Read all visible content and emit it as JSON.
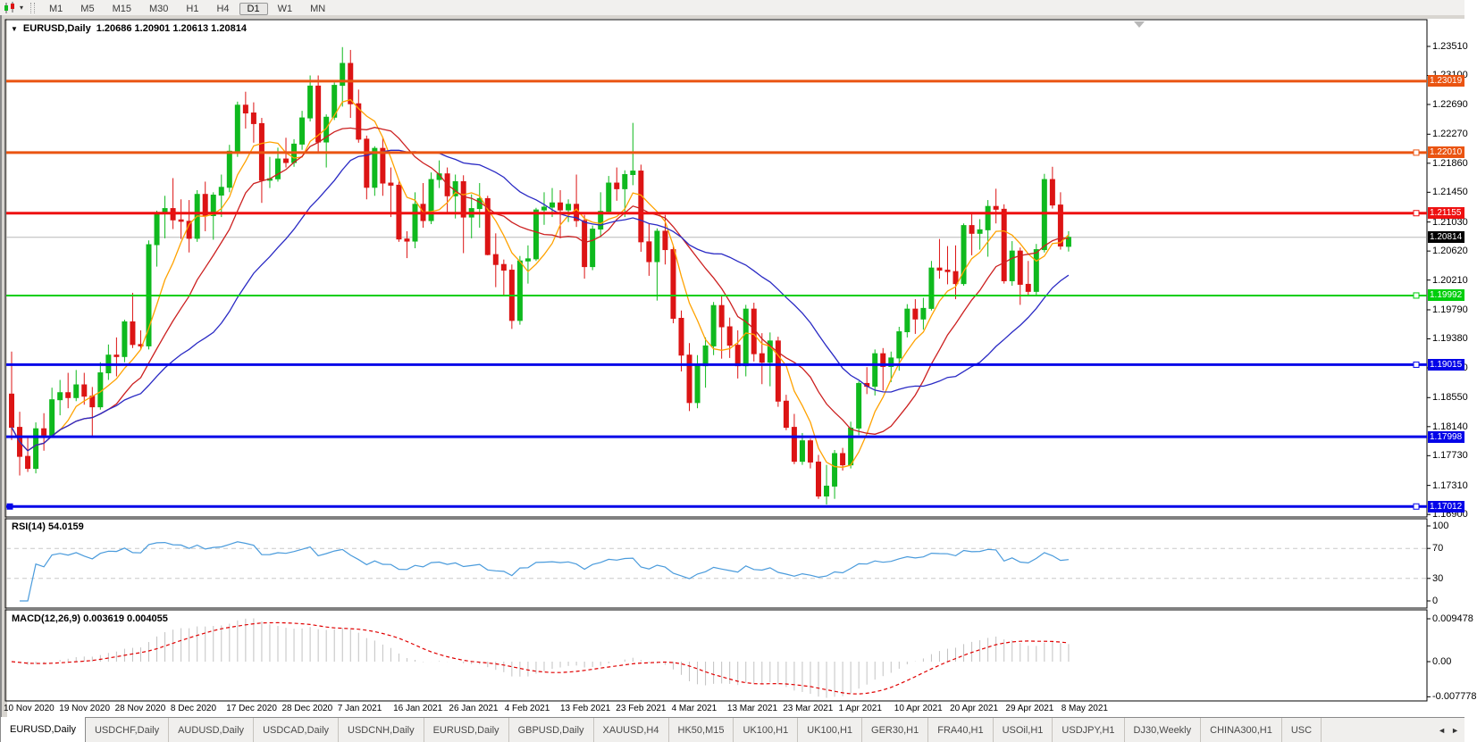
{
  "toolbar": {
    "timeframes": [
      "M1",
      "M5",
      "M15",
      "M30",
      "H1",
      "H4",
      "D1",
      "W1",
      "MN"
    ],
    "active_timeframe": "D1"
  },
  "chart": {
    "symbol_label": "EURUSD,Daily",
    "ohlc_label": "1.20686 1.20901 1.20613 1.20814",
    "dropdown_icon": "▼"
  },
  "chart_data": {
    "type": "candlestick+indicators",
    "symbol": "EURUSD",
    "timeframe": "Daily",
    "ohlc_display": {
      "open": "1.20686",
      "high": "1.20901",
      "low": "1.20613",
      "close": "1.20814"
    },
    "main": {
      "price_range": [
        1.16864,
        1.23888
      ],
      "ticks": [
        "1.23510",
        "1.23100",
        "1.22690",
        "1.22270",
        "1.21860",
        "1.21450",
        "1.21030",
        "1.20620",
        "1.20210",
        "1.19790",
        "1.19380",
        "1.18970",
        "1.18550",
        "1.18140",
        "1.17730",
        "1.17310",
        "1.16900"
      ],
      "levels": [
        {
          "price": 1.23019,
          "label": "1.23019",
          "color": "#EA5411",
          "width": 3,
          "handle": false,
          "left_handle": false
        },
        {
          "price": 1.2201,
          "label": "1.22010",
          "color": "#EA5411",
          "width": 3,
          "handle": true,
          "left_handle": false
        },
        {
          "price": 1.21155,
          "label": "1.21155",
          "color": "#EE1111",
          "width": 3,
          "handle": true,
          "left_handle": false
        },
        {
          "price": 1.19992,
          "label": "1.19992",
          "color": "#00CE0C",
          "width": 2,
          "handle": true,
          "left_handle": false
        },
        {
          "price": 1.19015,
          "label": "1.19015",
          "color": "#0404E8",
          "width": 3,
          "handle": true,
          "left_handle": false
        },
        {
          "price": 1.17998,
          "label": "1.17998",
          "color": "#0404E8",
          "width": 3,
          "handle": false,
          "left_handle": false
        },
        {
          "price": 1.17012,
          "label": "1.17012",
          "color": "#0404E8",
          "width": 3,
          "handle": true,
          "left_handle": true
        }
      ],
      "current_price": {
        "value": 1.20814,
        "label": "1.20814",
        "line_color": "#B8B8B8",
        "box_color": "#000000"
      },
      "candle_up_color": "#0FB91E",
      "candle_down_color": "#DC1414",
      "ma": [
        {
          "name": "ma-fast",
          "period": 6,
          "color": "#FFA200"
        },
        {
          "name": "ma-medium",
          "period": 13,
          "color": "#CC2020"
        },
        {
          "name": "ma-slow",
          "period": 26,
          "color": "#2A2AC4"
        }
      ],
      "candles": [
        [
          1.186,
          1.192,
          1.1795,
          1.1813
        ],
        [
          1.1813,
          1.1835,
          1.1745,
          1.1772
        ],
        [
          1.1772,
          1.18,
          1.175,
          1.1755
        ],
        [
          1.1755,
          1.182,
          1.1748,
          1.1811
        ],
        [
          1.1811,
          1.1833,
          1.178,
          1.1802
        ],
        [
          1.1802,
          1.1869,
          1.18,
          1.1852
        ],
        [
          1.1852,
          1.188,
          1.183,
          1.1862
        ],
        [
          1.1862,
          1.189,
          1.184,
          1.1855
        ],
        [
          1.1855,
          1.1894,
          1.185,
          1.1873
        ],
        [
          1.1873,
          1.189,
          1.1845,
          1.1857
        ],
        [
          1.1857,
          1.187,
          1.18,
          1.1842
        ],
        [
          1.1842,
          1.1905,
          1.1838,
          1.189
        ],
        [
          1.189,
          1.193,
          1.188,
          1.1915
        ],
        [
          1.1915,
          1.194,
          1.1885,
          1.1913
        ],
        [
          1.1913,
          1.1965,
          1.1905,
          1.1962
        ],
        [
          1.1962,
          1.2003,
          1.1925,
          1.193
        ],
        [
          1.193,
          1.195,
          1.1923,
          1.1928
        ],
        [
          1.1928,
          1.2077,
          1.1923,
          1.2071
        ],
        [
          1.2071,
          1.2119,
          1.204,
          1.2115
        ],
        [
          1.2115,
          1.214,
          1.208,
          1.2122
        ],
        [
          1.2122,
          1.2165,
          1.2093,
          1.2106
        ],
        [
          1.2106,
          1.2135,
          1.2079,
          1.2104
        ],
        [
          1.2104,
          1.2134,
          1.206,
          1.208
        ],
        [
          1.208,
          1.2148,
          1.2075,
          1.2142
        ],
        [
          1.2142,
          1.216,
          1.209,
          1.2112
        ],
        [
          1.2112,
          1.2145,
          1.2078,
          1.2141
        ],
        [
          1.2141,
          1.217,
          1.211,
          1.2152
        ],
        [
          1.2152,
          1.2212,
          1.2145,
          1.2203
        ],
        [
          1.2203,
          1.2273,
          1.2195,
          1.2268
        ],
        [
          1.2268,
          1.2287,
          1.2235,
          1.2257
        ],
        [
          1.2257,
          1.2272,
          1.2215,
          1.2242
        ],
        [
          1.2242,
          1.225,
          1.213,
          1.2162
        ],
        [
          1.2162,
          1.2195,
          1.2151,
          1.2164
        ],
        [
          1.2164,
          1.2208,
          1.216,
          1.2192
        ],
        [
          1.2192,
          1.2222,
          1.218,
          1.2187
        ],
        [
          1.2187,
          1.222,
          1.2181,
          1.2213
        ],
        [
          1.2213,
          1.226,
          1.2205,
          1.225
        ],
        [
          1.225,
          1.231,
          1.2245,
          1.2295
        ],
        [
          1.2295,
          1.231,
          1.22,
          1.2216
        ],
        [
          1.2216,
          1.2255,
          1.218,
          1.2251
        ],
        [
          1.2251,
          1.23,
          1.2247,
          1.2296
        ],
        [
          1.2296,
          1.235,
          1.2266,
          1.2327
        ],
        [
          1.2327,
          1.2346,
          1.225,
          1.227
        ],
        [
          1.227,
          1.229,
          1.2215,
          1.222
        ],
        [
          1.222,
          1.2225,
          1.2135,
          1.2152
        ],
        [
          1.2152,
          1.221,
          1.214,
          1.2207
        ],
        [
          1.2207,
          1.2223,
          1.214,
          1.2158
        ],
        [
          1.2158,
          1.218,
          1.211,
          1.2155
        ],
        [
          1.2155,
          1.216,
          1.2075,
          1.2079
        ],
        [
          1.2079,
          1.209,
          1.2052,
          1.2076
        ],
        [
          1.2076,
          1.2145,
          1.2066,
          1.2128
        ],
        [
          1.2128,
          1.2158,
          1.2095,
          1.2105
        ],
        [
          1.2105,
          1.2173,
          1.21,
          1.2163
        ],
        [
          1.2163,
          1.219,
          1.2151,
          1.2171
        ],
        [
          1.2171,
          1.218,
          1.2115,
          1.214
        ],
        [
          1.214,
          1.217,
          1.2108,
          1.216
        ],
        [
          1.216,
          1.2169,
          1.2059,
          1.211
        ],
        [
          1.211,
          1.2142,
          1.208,
          1.2122
        ],
        [
          1.2122,
          1.2158,
          1.2095,
          1.2136
        ],
        [
          1.2136,
          1.214,
          1.2056,
          1.2057
        ],
        [
          1.2057,
          1.2087,
          1.2011,
          1.2043
        ],
        [
          1.2043,
          1.205,
          1.1999,
          1.2035
        ],
        [
          1.2035,
          1.2043,
          1.1952,
          1.1964
        ],
        [
          1.1964,
          1.2055,
          1.1958,
          1.2048
        ],
        [
          1.2048,
          1.207,
          1.2016,
          1.2051
        ],
        [
          1.2051,
          1.2123,
          1.2048,
          1.212
        ],
        [
          1.212,
          1.2145,
          1.2099,
          1.2124
        ],
        [
          1.2124,
          1.2151,
          1.211,
          1.213
        ],
        [
          1.213,
          1.2148,
          1.208,
          1.212
        ],
        [
          1.212,
          1.2135,
          1.2103,
          1.2128
        ],
        [
          1.2128,
          1.217,
          1.2096,
          1.2105
        ],
        [
          1.2105,
          1.2113,
          1.2023,
          1.204
        ],
        [
          1.204,
          1.2098,
          1.2035,
          1.2093
        ],
        [
          1.2093,
          1.2145,
          1.2082,
          1.2118
        ],
        [
          1.2118,
          1.2168,
          1.2115,
          1.2158
        ],
        [
          1.2158,
          1.218,
          1.2133,
          1.215
        ],
        [
          1.215,
          1.2176,
          1.211,
          1.217
        ],
        [
          1.217,
          1.2243,
          1.2155,
          1.2175
        ],
        [
          1.2175,
          1.2184,
          1.2061,
          1.2075
        ],
        [
          1.2075,
          1.2101,
          1.2027,
          1.2047
        ],
        [
          1.2047,
          1.2094,
          1.1992,
          1.209
        ],
        [
          1.209,
          1.2113,
          1.2043,
          1.2064
        ],
        [
          1.2064,
          1.2069,
          1.196,
          1.1967
        ],
        [
          1.1967,
          1.1978,
          1.1892,
          1.1915
        ],
        [
          1.1915,
          1.1932,
          1.1836,
          1.1848
        ],
        [
          1.1848,
          1.1915,
          1.184,
          1.19
        ],
        [
          1.19,
          1.194,
          1.1869,
          1.1928
        ],
        [
          1.1928,
          1.199,
          1.1915,
          1.1985
        ],
        [
          1.1985,
          1.1998,
          1.191,
          1.1955
        ],
        [
          1.1955,
          1.1968,
          1.1911,
          1.1929
        ],
        [
          1.1929,
          1.195,
          1.1882,
          1.19
        ],
        [
          1.19,
          1.1986,
          1.1885,
          1.198
        ],
        [
          1.198,
          1.1989,
          1.1906,
          1.1917
        ],
        [
          1.1917,
          1.1946,
          1.1874,
          1.1905
        ],
        [
          1.1905,
          1.1947,
          1.1871,
          1.1935
        ],
        [
          1.1935,
          1.1941,
          1.1842,
          1.185
        ],
        [
          1.185,
          1.1859,
          1.1809,
          1.1813
        ],
        [
          1.1813,
          1.1832,
          1.1761,
          1.1765
        ],
        [
          1.1765,
          1.1805,
          1.176,
          1.1794
        ],
        [
          1.1794,
          1.1797,
          1.1755,
          1.1764
        ],
        [
          1.1764,
          1.1774,
          1.1712,
          1.1716
        ],
        [
          1.1716,
          1.176,
          1.1704,
          1.173
        ],
        [
          1.173,
          1.1781,
          1.1712,
          1.1776
        ],
        [
          1.1776,
          1.1784,
          1.1752,
          1.176
        ],
        [
          1.176,
          1.1821,
          1.1755,
          1.1812
        ],
        [
          1.1812,
          1.1878,
          1.1802,
          1.1875
        ],
        [
          1.1875,
          1.1898,
          1.186,
          1.1871
        ],
        [
          1.1871,
          1.1923,
          1.1858,
          1.1917
        ],
        [
          1.1917,
          1.1925,
          1.1865,
          1.1899
        ],
        [
          1.1899,
          1.192,
          1.1877,
          1.1911
        ],
        [
          1.1911,
          1.1955,
          1.1893,
          1.1948
        ],
        [
          1.1948,
          1.1987,
          1.194,
          1.198
        ],
        [
          1.198,
          1.1994,
          1.1945,
          1.1966
        ],
        [
          1.1966,
          1.1996,
          1.1951,
          1.1981
        ],
        [
          1.1981,
          1.2048,
          1.1978,
          1.2038
        ],
        [
          1.2038,
          1.2079,
          1.2023,
          1.2035
        ],
        [
          1.2035,
          1.2069,
          1.2015,
          1.2033
        ],
        [
          1.2033,
          1.207,
          1.1994,
          1.2016
        ],
        [
          1.2016,
          1.2101,
          1.2013,
          1.2098
        ],
        [
          1.2098,
          1.2117,
          1.2056,
          1.2087
        ],
        [
          1.2087,
          1.2107,
          1.2064,
          1.2092
        ],
        [
          1.2092,
          1.2134,
          1.2054,
          1.2125
        ],
        [
          1.2125,
          1.215,
          1.2101,
          1.2121
        ],
        [
          1.2121,
          1.2128,
          1.2016,
          1.202
        ],
        [
          1.202,
          1.2076,
          1.2013,
          1.2062
        ],
        [
          1.2062,
          1.2067,
          1.1986,
          1.2015
        ],
        [
          1.2015,
          1.2048,
          1.1999,
          1.2005
        ],
        [
          1.2005,
          1.2072,
          1.2,
          1.2064
        ],
        [
          1.2064,
          1.2171,
          1.206,
          1.2163
        ],
        [
          1.2163,
          1.2181,
          1.2122,
          1.2127
        ],
        [
          1.2127,
          1.2145,
          1.2064,
          1.2069
        ],
        [
          1.20686,
          1.20901,
          1.20613,
          1.20814
        ]
      ]
    },
    "rsi": {
      "label": "RSI(14) 54.0159",
      "period": 14,
      "value": 54.0159,
      "color": "#4A9BDC",
      "axis_ticks": [
        "100",
        "70",
        "30",
        "0"
      ],
      "axis_values": [
        100,
        70,
        30,
        0
      ],
      "dashed_levels": [
        70,
        30
      ],
      "range": [
        0,
        100
      ]
    },
    "macd": {
      "label": "MACD(12,26,9) 0.003619 0.004055",
      "params": [
        12,
        26,
        9
      ],
      "macd_value": 0.003619,
      "signal_value": 0.004055,
      "histogram_color": "#C2C2C2",
      "signal_color": "#E00000",
      "axis_ticks": [
        "0.009478",
        "0.00",
        "-0.007778"
      ],
      "axis_values": [
        0.009478,
        0,
        -0.007778
      ]
    },
    "dates": [
      "10 Nov 2020",
      "19 Nov 2020",
      "28 Nov 2020",
      "8 Dec 2020",
      "17 Dec 2020",
      "28 Dec 2020",
      "7 Jan 2021",
      "16 Jan 2021",
      "26 Jan 2021",
      "4 Feb 2021",
      "13 Feb 2021",
      "23 Feb 2021",
      "4 Mar 2021",
      "13 Mar 2021",
      "23 Mar 2021",
      "1 Apr 2021",
      "10 Apr 2021",
      "20 Apr 2021",
      "29 Apr 2021",
      "8 May 2021"
    ]
  },
  "tabs": {
    "items": [
      "EURUSD,Daily",
      "USDCHF,Daily",
      "AUDUSD,Daily",
      "USDCAD,Daily",
      "USDCNH,Daily",
      "EURUSD,Daily",
      "GBPUSD,Daily",
      "XAUUSD,H4",
      "HK50,M15",
      "UK100,H1",
      "UK100,H1",
      "GER30,H1",
      "FRA40,H1",
      "USOil,H1",
      "USDJPY,H1",
      "DJ30,Weekly",
      "CHINA300,H1",
      "USC"
    ],
    "active_index": 0,
    "scroll_left_icon": "◄",
    "scroll_right_icon": "►"
  }
}
